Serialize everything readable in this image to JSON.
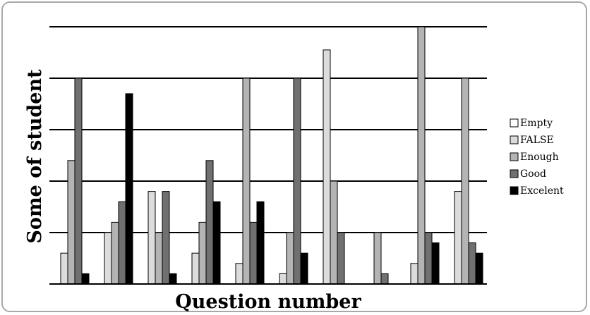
{
  "chart_data": {
    "type": "bar",
    "xlabel": "Question number",
    "ylabel": "Some of student",
    "ylim": [
      0,
      10
    ],
    "grid": true,
    "legend_position": "right",
    "categories": [
      "",
      "",
      "",
      "",
      "",
      "",
      "",
      "",
      "",
      ""
    ],
    "series": [
      {
        "name": "Empty",
        "color": "#ffffff",
        "values": [
          0,
          0,
          0,
          0,
          0,
          0,
          0,
          0,
          0,
          0
        ]
      },
      {
        "name": "FALSE",
        "color": "#dcdcdc",
        "values": [
          1.2,
          2,
          3.6,
          1.2,
          0.8,
          0.4,
          9.1,
          0,
          0.8,
          3.6
        ]
      },
      {
        "name": "Enough",
        "color": "#b4b4b4",
        "values": [
          4.8,
          2.4,
          2,
          2.4,
          8,
          2,
          4,
          2,
          10,
          8
        ]
      },
      {
        "name": "Good",
        "color": "#707070",
        "values": [
          8,
          3.2,
          3.6,
          4.8,
          2.4,
          8,
          2,
          0.4,
          2,
          1.6
        ]
      },
      {
        "name": "Excelent",
        "color": "#000000",
        "values": [
          0.4,
          7.4,
          0.4,
          3.2,
          3.2,
          1.2,
          0,
          0,
          1.6,
          1.2
        ]
      }
    ],
    "extra_bar_heights_note": ""
  },
  "legend": {
    "items": [
      "Empty",
      "FALSE",
      "Enough",
      "Good",
      "Excelent"
    ]
  }
}
